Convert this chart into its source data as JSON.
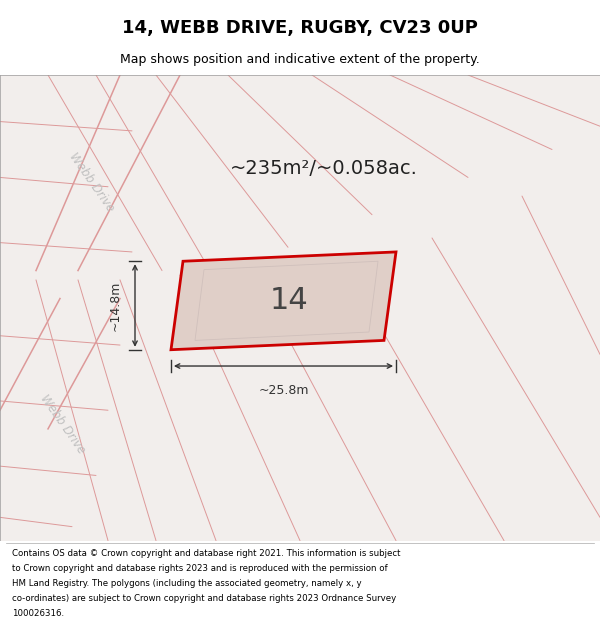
{
  "title": "14, WEBB DRIVE, RUGBY, CV23 0UP",
  "subtitle": "Map shows position and indicative extent of the property.",
  "footer_lines": [
    "Contains OS data © Crown copyright and database right 2021. This information is subject",
    "to Crown copyright and database rights 2023 and is reproduced with the permission of",
    "HM Land Registry. The polygons (including the associated geometry, namely x, y",
    "co-ordinates) are subject to Crown copyright and database rights 2023 Ordnance Survey",
    "100026316."
  ],
  "area_text": "~235m²/~0.058ac.",
  "dim_width": "~25.8m",
  "dim_height": "~14.8m",
  "label_14": "14",
  "label_webb_drive": "Webb Drive",
  "map_bg": "#f2eeec",
  "plot_fill": "#e0cfc8",
  "plot_edge": "#cc0000",
  "grid_line_color": "#dd9999",
  "dim_color": "#333333",
  "title_color": "#000000",
  "footer_color": "#000000"
}
